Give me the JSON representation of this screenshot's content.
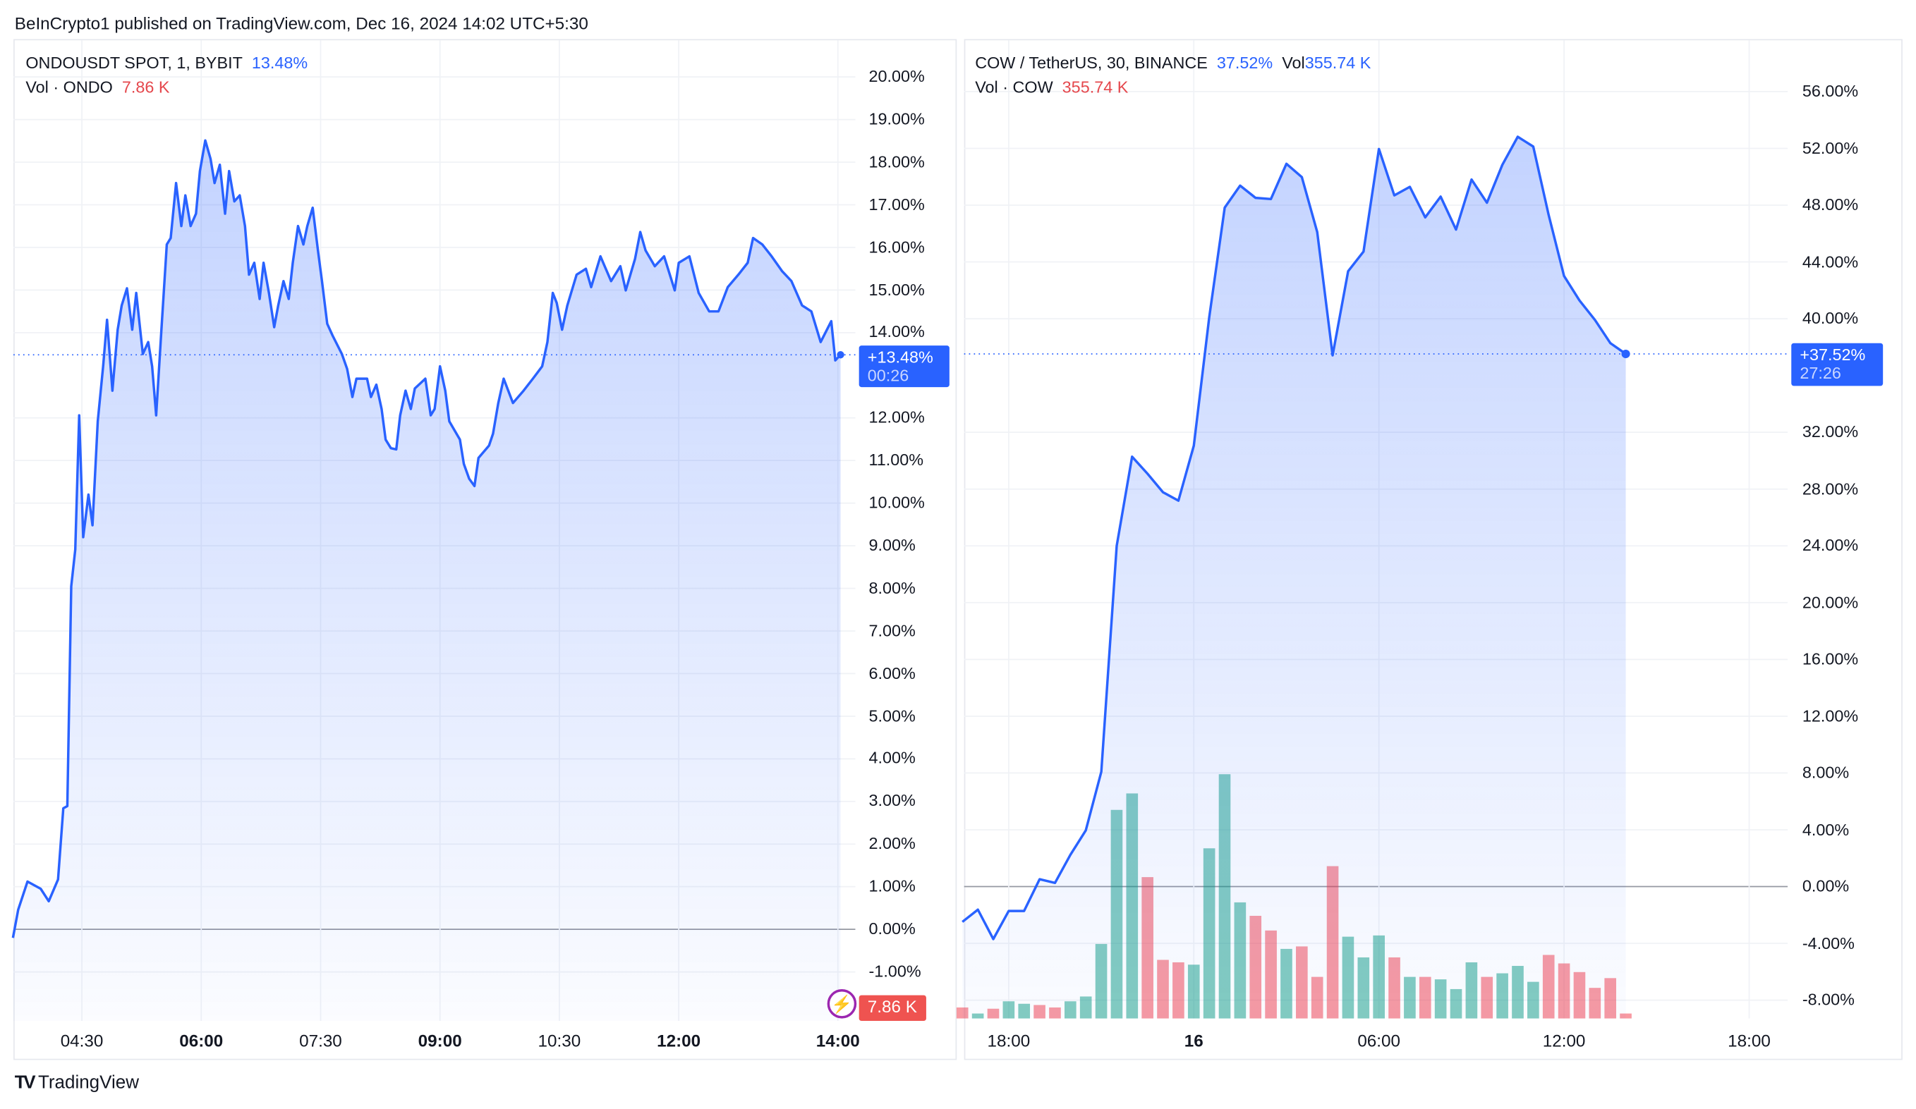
{
  "header": {
    "published": "BeInCrypto1 published on TradingView.com, Dec 16, 2024 14:02 UTC+5:30"
  },
  "footer": {
    "logo": "TradingView"
  },
  "colors": {
    "line": "#2962ff",
    "fill": "#2962ff",
    "volume_up": "#089981",
    "volume_down": "#f23645",
    "zero_line": "#9598a1"
  },
  "chart_data": [
    {
      "type": "area",
      "symbol_label": "ONDOUSDT SPOT, 1, BYBIT",
      "change": "13.48%",
      "volume_label": "Vol · ONDO",
      "volume": "7.86 K",
      "last_badge": "+13.48%",
      "countdown": "00:26",
      "volume_badge": "7.86 K",
      "ylabel": "",
      "ylim": [
        -1.3,
        20.5
      ],
      "y_ticks": [
        "20.00%",
        "19.00%",
        "18.00%",
        "17.00%",
        "16.00%",
        "15.00%",
        "14.00%",
        "12.00%",
        "11.00%",
        "10.00%",
        "9.00%",
        "8.00%",
        "7.00%",
        "6.00%",
        "5.00%",
        "4.00%",
        "3.00%",
        "2.00%",
        "1.00%",
        "0.00%",
        "-1.00%"
      ],
      "x_ticks": [
        {
          "label": "04:30",
          "bold": false,
          "time": "04:30"
        },
        {
          "label": "06:00",
          "bold": true,
          "time": "06:00"
        },
        {
          "label": "07:30",
          "bold": false,
          "time": "07:30"
        },
        {
          "label": "09:00",
          "bold": true,
          "time": "09:00"
        },
        {
          "label": "10:30",
          "bold": false,
          "time": "10:30"
        },
        {
          "label": "12:00",
          "bold": true,
          "time": "12:00"
        },
        {
          "label": "14:00",
          "bold": true,
          "time": "14:00"
        }
      ],
      "series": [
        [
          "03:38",
          -0.2
        ],
        [
          "03:42",
          0.46
        ],
        [
          "03:49",
          1.12
        ],
        [
          "03:59",
          0.95
        ],
        [
          "04:05",
          0.66
        ],
        [
          "04:12",
          1.17
        ],
        [
          "04:16",
          2.84
        ],
        [
          "04:19",
          2.89
        ],
        [
          "04:22",
          8.05
        ],
        [
          "04:25",
          8.91
        ],
        [
          "04:28",
          12.06
        ],
        [
          "04:31",
          9.2
        ],
        [
          "04:35",
          10.2
        ],
        [
          "04:38",
          9.48
        ],
        [
          "04:42",
          11.92
        ],
        [
          "04:46",
          13.21
        ],
        [
          "04:49",
          14.3
        ],
        [
          "04:53",
          12.64
        ],
        [
          "04:57",
          14.07
        ],
        [
          "05:00",
          14.64
        ],
        [
          "05:04",
          15.04
        ],
        [
          "05:08",
          14.07
        ],
        [
          "05:11",
          14.93
        ],
        [
          "05:16",
          13.5
        ],
        [
          "05:20",
          13.78
        ],
        [
          "05:23",
          13.21
        ],
        [
          "05:26",
          12.06
        ],
        [
          "05:30",
          14.07
        ],
        [
          "05:34",
          16.07
        ],
        [
          "05:37",
          16.22
        ],
        [
          "05:41",
          17.51
        ],
        [
          "05:45",
          16.5
        ],
        [
          "05:48",
          17.22
        ],
        [
          "05:52",
          16.5
        ],
        [
          "05:56",
          16.79
        ],
        [
          "05:59",
          17.79
        ],
        [
          "06:03",
          18.51
        ],
        [
          "06:07",
          18.08
        ],
        [
          "06:10",
          17.51
        ],
        [
          "06:14",
          17.94
        ],
        [
          "06:18",
          16.79
        ],
        [
          "06:21",
          17.79
        ],
        [
          "06:25",
          17.08
        ],
        [
          "06:29",
          17.22
        ],
        [
          "06:33",
          16.5
        ],
        [
          "06:36",
          15.36
        ],
        [
          "06:40",
          15.64
        ],
        [
          "06:44",
          14.79
        ],
        [
          "06:47",
          15.64
        ],
        [
          "06:51",
          14.93
        ],
        [
          "06:55",
          14.13
        ],
        [
          "06:58",
          14.64
        ],
        [
          "07:02",
          15.21
        ],
        [
          "07:06",
          14.79
        ],
        [
          "07:09",
          15.64
        ],
        [
          "07:13",
          16.5
        ],
        [
          "07:17",
          16.07
        ],
        [
          "07:20",
          16.5
        ],
        [
          "07:24",
          16.93
        ],
        [
          "07:28",
          15.93
        ],
        [
          "07:31",
          15.21
        ],
        [
          "07:35",
          14.21
        ],
        [
          "07:39",
          13.93
        ],
        [
          "07:46",
          13.5
        ],
        [
          "07:50",
          13.15
        ],
        [
          "07:54",
          12.49
        ],
        [
          "07:57",
          12.92
        ],
        [
          "08:05",
          12.92
        ],
        [
          "08:08",
          12.49
        ],
        [
          "08:12",
          12.78
        ],
        [
          "08:16",
          12.21
        ],
        [
          "08:19",
          11.49
        ],
        [
          "08:23",
          11.29
        ],
        [
          "08:27",
          11.26
        ],
        [
          "08:30",
          12.06
        ],
        [
          "08:34",
          12.64
        ],
        [
          "08:38",
          12.21
        ],
        [
          "08:41",
          12.69
        ],
        [
          "08:49",
          12.92
        ],
        [
          "08:53",
          12.06
        ],
        [
          "08:56",
          12.21
        ],
        [
          "09:00",
          13.21
        ],
        [
          "09:04",
          12.64
        ],
        [
          "09:07",
          11.92
        ],
        [
          "09:15",
          11.49
        ],
        [
          "09:18",
          10.92
        ],
        [
          "09:22",
          10.57
        ],
        [
          "09:26",
          10.4
        ],
        [
          "09:29",
          11.06
        ],
        [
          "09:37",
          11.35
        ],
        [
          "09:40",
          11.63
        ],
        [
          "09:44",
          12.35
        ],
        [
          "09:48",
          12.92
        ],
        [
          "09:55",
          12.35
        ],
        [
          "10:03",
          12.64
        ],
        [
          "10:10",
          12.92
        ],
        [
          "10:17",
          13.21
        ],
        [
          "10:21",
          13.78
        ],
        [
          "10:25",
          14.93
        ],
        [
          "10:28",
          14.7
        ],
        [
          "10:32",
          14.07
        ],
        [
          "10:36",
          14.64
        ],
        [
          "10:43",
          15.36
        ],
        [
          "10:50",
          15.5
        ],
        [
          "10:54",
          15.07
        ],
        [
          "11:01",
          15.79
        ],
        [
          "11:09",
          15.21
        ],
        [
          "11:16",
          15.56
        ],
        [
          "11:20",
          14.99
        ],
        [
          "11:27",
          15.73
        ],
        [
          "11:31",
          16.36
        ],
        [
          "11:35",
          15.93
        ],
        [
          "11:42",
          15.56
        ],
        [
          "11:49",
          15.79
        ],
        [
          "11:57",
          14.99
        ],
        [
          "12:00",
          15.64
        ],
        [
          "12:08",
          15.79
        ],
        [
          "12:15",
          14.93
        ],
        [
          "12:23",
          14.5
        ],
        [
          "12:30",
          14.5
        ],
        [
          "12:37",
          15.07
        ],
        [
          "12:45",
          15.36
        ],
        [
          "12:52",
          15.64
        ],
        [
          "12:56",
          16.22
        ],
        [
          "13:03",
          16.07
        ],
        [
          "13:10",
          15.79
        ],
        [
          "13:18",
          15.44
        ],
        [
          "13:25",
          15.21
        ],
        [
          "13:33",
          14.64
        ],
        [
          "13:40",
          14.5
        ],
        [
          "13:47",
          13.78
        ],
        [
          "13:55",
          14.27
        ],
        [
          "13:58",
          13.35
        ],
        [
          "14:02",
          13.48
        ]
      ]
    },
    {
      "type": "area",
      "symbol_label": "COW / TetherUS, 30, BINANCE",
      "change": "37.52%",
      "vol_inline_label": "Vol",
      "vol_inline_value": "355.74 K",
      "volume_label": "Vol · COW",
      "volume": "355.74 K",
      "last_badge": "+37.52%",
      "countdown": "27:26",
      "ylim": [
        -9.3,
        57
      ],
      "y_ticks": [
        "56.00%",
        "52.00%",
        "48.00%",
        "44.00%",
        "40.00%",
        "32.00%",
        "28.00%",
        "24.00%",
        "20.00%",
        "16.00%",
        "12.00%",
        "8.00%",
        "4.00%",
        "0.00%",
        "-4.00%",
        "-8.00%"
      ],
      "x_ticks": [
        {
          "label": "18:00",
          "bold": false,
          "time": "2024-12-15 18:00"
        },
        {
          "label": "16",
          "bold": true,
          "time": "2024-12-16 00:00"
        },
        {
          "label": "06:00",
          "bold": false,
          "time": "2024-12-16 06:00"
        },
        {
          "label": "12:00",
          "bold": false,
          "time": "2024-12-16 12:00"
        },
        {
          "label": "18:00",
          "bold": false,
          "time": "2024-12-16 18:00"
        }
      ],
      "series_start": "2024-12-15 16:30",
      "interval_minutes": 30,
      "values": [
        -2.49,
        -1.63,
        -3.7,
        -1.72,
        -1.72,
        0.52,
        0.26,
        2.24,
        3.96,
        8.09,
        24.0,
        30.28,
        29.08,
        27.78,
        27.18,
        31.05,
        40.09,
        47.83,
        49.38,
        48.52,
        48.43,
        50.92,
        49.98,
        46.11,
        37.42,
        43.35,
        44.73,
        51.96,
        48.69,
        49.29,
        47.14,
        48.6,
        46.28,
        49.81,
        48.17,
        50.84,
        52.82,
        52.13,
        47.31,
        43.01,
        41.29,
        39.91,
        38.28,
        37.52
      ],
      "volume_millions": [
        0.8,
        0.36,
        0.71,
        1.25,
        1.07,
        0.98,
        0.8,
        1.25,
        1.6,
        5.43,
        15.2,
        16.4,
        10.3,
        4.27,
        4.09,
        3.92,
        12.4,
        17.8,
        8.46,
        7.48,
        6.41,
        5.07,
        5.25,
        3.03,
        11.1,
        5.96,
        4.45,
        6.05,
        4.45,
        3.03,
        3.03,
        2.85,
        2.14,
        4.09,
        3.03,
        3.29,
        3.83,
        2.67,
        4.63,
        4.01,
        3.38,
        2.23,
        2.94,
        0.36
      ],
      "volume_direction": [
        "down",
        "up",
        "down",
        "up",
        "up",
        "down",
        "down",
        "up",
        "up",
        "up",
        "up",
        "up",
        "down",
        "down",
        "down",
        "up",
        "up",
        "up",
        "up",
        "down",
        "down",
        "up",
        "down",
        "down",
        "down",
        "up",
        "up",
        "up",
        "down",
        "up",
        "down",
        "up",
        "up",
        "up",
        "down",
        "up",
        "up",
        "up",
        "down",
        "down",
        "down",
        "down",
        "down",
        "down"
      ]
    }
  ]
}
